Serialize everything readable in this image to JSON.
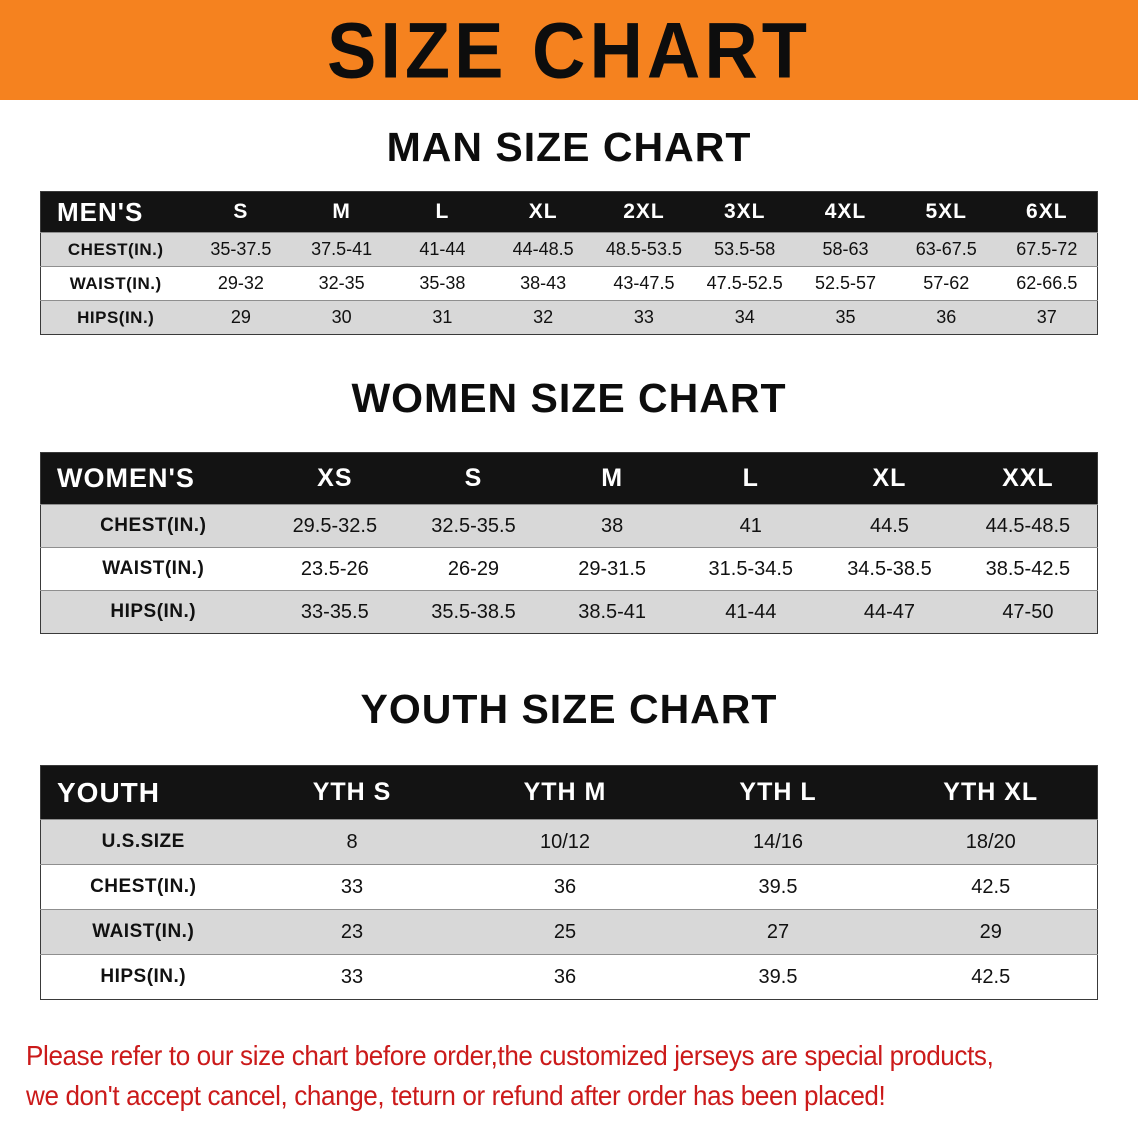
{
  "banner": {
    "title": "SIZE CHART"
  },
  "colors": {
    "banner_orange": "#f5821f",
    "header_black": "#131313",
    "row_gray": "#d8d8d8",
    "note_red": "#cb1a1a"
  },
  "sections": [
    {
      "heading": "MAN SIZE CHART",
      "table": {
        "header": [
          "MEN'S",
          "S",
          "M",
          "L",
          "XL",
          "2XL",
          "3XL",
          "4XL",
          "5XL",
          "6XL"
        ],
        "rows": [
          {
            "label": "CHEST(IN.)",
            "values": [
              "35-37.5",
              "37.5-41",
              "41-44",
              "44-48.5",
              "48.5-53.5",
              "53.5-58",
              "58-63",
              "63-67.5",
              "67.5-72"
            ]
          },
          {
            "label": "WAIST(IN.)",
            "values": [
              "29-32",
              "32-35",
              "35-38",
              "38-43",
              "43-47.5",
              "47.5-52.5",
              "52.5-57",
              "57-62",
              "62-66.5"
            ]
          },
          {
            "label": "HIPS(IN.)",
            "values": [
              "29",
              "30",
              "31",
              "32",
              "33",
              "34",
              "35",
              "36",
              "37"
            ]
          }
        ]
      }
    },
    {
      "heading": "WOMEN SIZE CHART",
      "table": {
        "header": [
          "WOMEN'S",
          "XS",
          "S",
          "M",
          "L",
          "XL",
          "XXL"
        ],
        "rows": [
          {
            "label": "CHEST(IN.)",
            "values": [
              "29.5-32.5",
              "32.5-35.5",
              "38",
              "41",
              "44.5",
              "44.5-48.5"
            ]
          },
          {
            "label": "WAIST(IN.)",
            "values": [
              "23.5-26",
              "26-29",
              "29-31.5",
              "31.5-34.5",
              "34.5-38.5",
              "38.5-42.5"
            ]
          },
          {
            "label": "HIPS(IN.)",
            "values": [
              "33-35.5",
              "35.5-38.5",
              "38.5-41",
              "41-44",
              "44-47",
              "47-50"
            ]
          }
        ]
      }
    },
    {
      "heading": "YOUTH SIZE CHART",
      "table": {
        "header": [
          "YOUTH",
          "YTH S",
          "YTH M",
          "YTH L",
          "YTH XL"
        ],
        "rows": [
          {
            "label": "U.S.SIZE",
            "values": [
              "8",
              "10/12",
              "14/16",
              "18/20"
            ]
          },
          {
            "label": "CHEST(IN.)",
            "values": [
              "33",
              "36",
              "39.5",
              "42.5"
            ]
          },
          {
            "label": "WAIST(IN.)",
            "values": [
              "23",
              "25",
              "27",
              "29"
            ]
          },
          {
            "label": "HIPS(IN.)",
            "values": [
              "33",
              "36",
              "39.5",
              "42.5"
            ]
          }
        ]
      }
    }
  ],
  "footer": {
    "line1": "Please refer to our size chart before order,the customized jerseys are special products,",
    "line2": "we don't accept cancel, change, teturn or refund after order has been placed!"
  }
}
